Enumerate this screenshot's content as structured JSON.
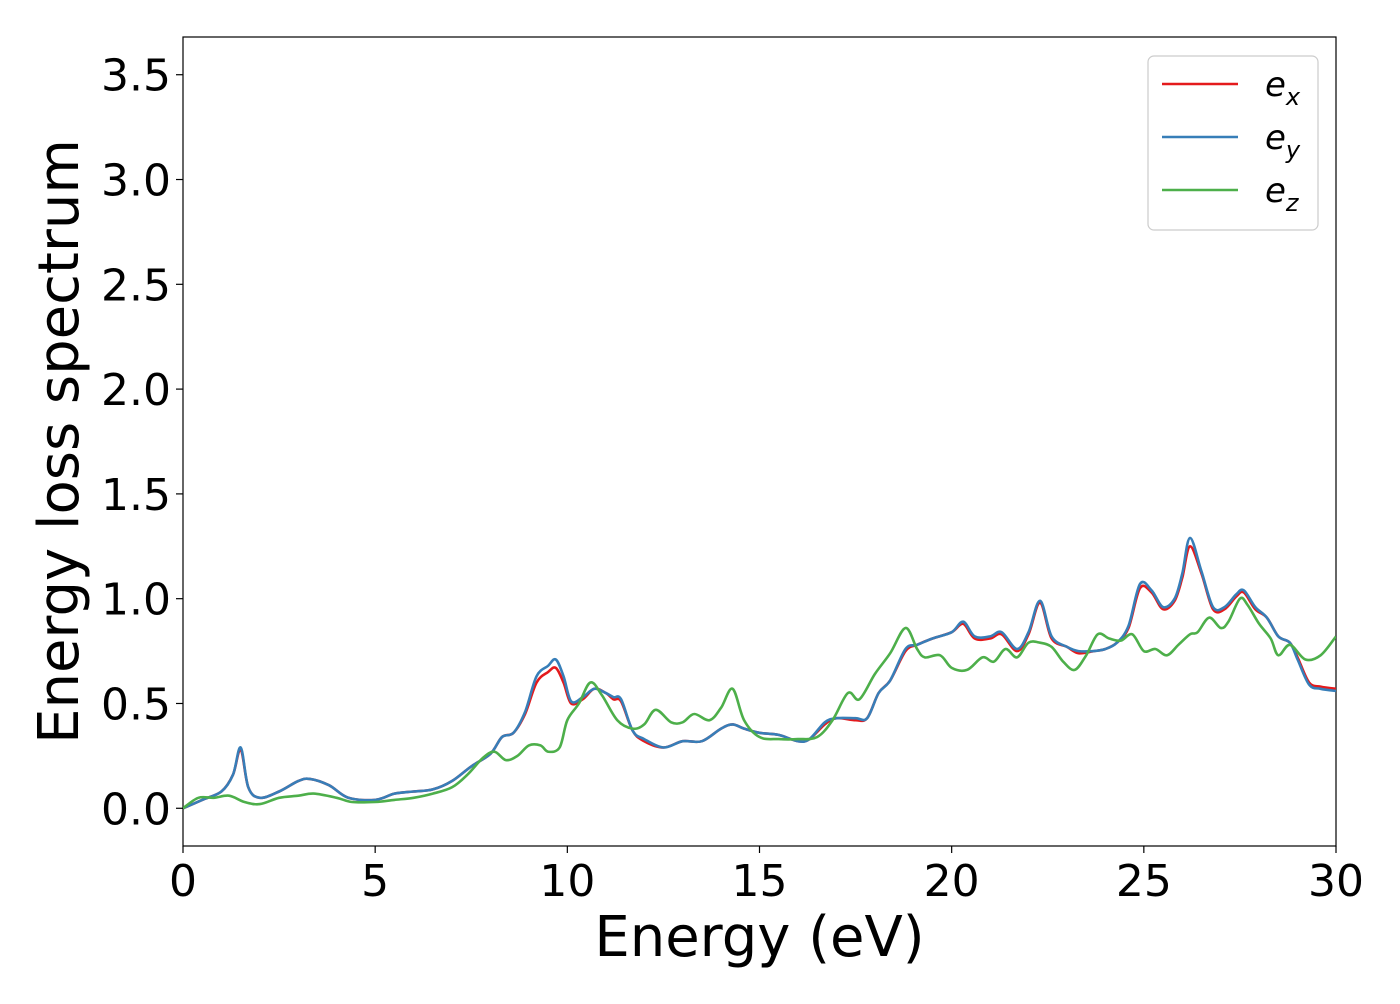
{
  "chart_data": {
    "type": "line",
    "title": "",
    "xlabel": "Energy (eV)",
    "ylabel": "Energy loss spectrum",
    "xlim": [
      0,
      30
    ],
    "ylim": [
      -0.18,
      3.68
    ],
    "xticks": [
      0,
      5,
      10,
      15,
      20,
      25,
      30
    ],
    "xtick_labels": [
      "0",
      "5",
      "10",
      "15",
      "20",
      "25",
      "30"
    ],
    "yticks": [
      0.0,
      0.5,
      1.0,
      1.5,
      2.0,
      2.5,
      3.0,
      3.5
    ],
    "ytick_labels": [
      "0.0",
      "0.5",
      "1.0",
      "1.5",
      "2.0",
      "2.5",
      "3.0",
      "3.5"
    ],
    "grid": false,
    "legend_position": "top-right",
    "series": [
      {
        "name": "e_x",
        "legend_base": "e",
        "legend_sub": "x",
        "color": "#e41a1c",
        "x": [
          0,
          0.5,
          1.0,
          1.3,
          1.5,
          1.7,
          2.0,
          2.5,
          3.0,
          3.3,
          3.8,
          4.3,
          5.0,
          5.5,
          6.0,
          6.5,
          7.0,
          7.5,
          8.0,
          8.3,
          8.6,
          8.9,
          9.2,
          9.5,
          9.7,
          9.9,
          10.1,
          10.4,
          10.7,
          11.0,
          11.2,
          11.4,
          11.7,
          12.0,
          12.5,
          13.0,
          13.5,
          14.0,
          14.3,
          14.6,
          15.0,
          15.5,
          16.0,
          16.3,
          16.7,
          17.0,
          17.5,
          17.8,
          18.1,
          18.4,
          18.8,
          19.1,
          19.5,
          20.0,
          20.3,
          20.6,
          21.0,
          21.3,
          21.7,
          22.0,
          22.3,
          22.6,
          23.0,
          23.3,
          23.7,
          24.0,
          24.3,
          24.6,
          24.9,
          25.2,
          25.5,
          25.8,
          26.0,
          26.2,
          26.5,
          26.8,
          27.1,
          27.4,
          27.6,
          27.9,
          28.2,
          28.5,
          28.8,
          29.0,
          29.3,
          29.6,
          30.0
        ],
        "y": [
          0.0,
          0.04,
          0.08,
          0.16,
          0.28,
          0.1,
          0.05,
          0.08,
          0.13,
          0.14,
          0.11,
          0.05,
          0.04,
          0.07,
          0.08,
          0.09,
          0.13,
          0.2,
          0.26,
          0.34,
          0.36,
          0.45,
          0.6,
          0.65,
          0.67,
          0.6,
          0.5,
          0.52,
          0.57,
          0.55,
          0.52,
          0.51,
          0.37,
          0.32,
          0.29,
          0.32,
          0.32,
          0.38,
          0.4,
          0.38,
          0.36,
          0.35,
          0.32,
          0.33,
          0.4,
          0.43,
          0.42,
          0.43,
          0.55,
          0.61,
          0.75,
          0.78,
          0.81,
          0.84,
          0.88,
          0.81,
          0.81,
          0.83,
          0.75,
          0.83,
          0.98,
          0.81,
          0.77,
          0.74,
          0.75,
          0.76,
          0.79,
          0.86,
          1.05,
          1.03,
          0.95,
          0.99,
          1.1,
          1.25,
          1.12,
          0.95,
          0.95,
          1.01,
          1.03,
          0.95,
          0.91,
          0.82,
          0.79,
          0.72,
          0.6,
          0.58,
          0.57
        ]
      },
      {
        "name": "e_y",
        "legend_base": "e",
        "legend_sub": "y",
        "color": "#377eb8",
        "x": [
          0,
          0.5,
          1.0,
          1.3,
          1.5,
          1.7,
          2.0,
          2.5,
          3.0,
          3.3,
          3.8,
          4.3,
          5.0,
          5.5,
          6.0,
          6.5,
          7.0,
          7.5,
          8.0,
          8.3,
          8.6,
          8.9,
          9.2,
          9.5,
          9.7,
          9.9,
          10.1,
          10.4,
          10.7,
          11.0,
          11.2,
          11.4,
          11.7,
          12.0,
          12.5,
          13.0,
          13.5,
          14.0,
          14.3,
          14.6,
          15.0,
          15.5,
          16.0,
          16.3,
          16.7,
          17.0,
          17.5,
          17.8,
          18.1,
          18.4,
          18.8,
          19.1,
          19.5,
          20.0,
          20.3,
          20.6,
          21.0,
          21.3,
          21.7,
          22.0,
          22.3,
          22.6,
          23.0,
          23.3,
          23.7,
          24.0,
          24.3,
          24.6,
          24.9,
          25.2,
          25.5,
          25.8,
          26.0,
          26.2,
          26.5,
          26.8,
          27.1,
          27.4,
          27.6,
          27.9,
          28.2,
          28.5,
          28.8,
          29.0,
          29.3,
          29.6,
          30.0
        ],
        "y": [
          0.0,
          0.04,
          0.08,
          0.16,
          0.29,
          0.1,
          0.05,
          0.08,
          0.13,
          0.14,
          0.11,
          0.05,
          0.04,
          0.07,
          0.08,
          0.09,
          0.13,
          0.2,
          0.26,
          0.34,
          0.36,
          0.46,
          0.63,
          0.68,
          0.71,
          0.63,
          0.51,
          0.53,
          0.57,
          0.55,
          0.53,
          0.52,
          0.37,
          0.33,
          0.29,
          0.32,
          0.32,
          0.38,
          0.4,
          0.38,
          0.36,
          0.35,
          0.32,
          0.33,
          0.41,
          0.43,
          0.43,
          0.43,
          0.55,
          0.61,
          0.76,
          0.78,
          0.81,
          0.84,
          0.89,
          0.82,
          0.82,
          0.84,
          0.76,
          0.84,
          0.99,
          0.82,
          0.77,
          0.75,
          0.75,
          0.76,
          0.79,
          0.87,
          1.07,
          1.04,
          0.96,
          1.0,
          1.12,
          1.29,
          1.13,
          0.96,
          0.96,
          1.02,
          1.04,
          0.96,
          0.91,
          0.82,
          0.79,
          0.71,
          0.59,
          0.57,
          0.56
        ]
      },
      {
        "name": "e_z",
        "legend_base": "e",
        "legend_sub": "z",
        "color": "#4daf4a",
        "x": [
          0,
          0.4,
          0.8,
          1.2,
          1.6,
          2.0,
          2.5,
          3.0,
          3.4,
          4.0,
          4.4,
          5.0,
          5.5,
          6.0,
          6.5,
          7.0,
          7.4,
          7.8,
          8.1,
          8.4,
          8.7,
          9.0,
          9.3,
          9.5,
          9.8,
          10.0,
          10.3,
          10.6,
          10.9,
          11.3,
          11.7,
          12.0,
          12.3,
          12.7,
          13.0,
          13.3,
          13.7,
          14.0,
          14.3,
          14.6,
          15.0,
          15.5,
          16.0,
          16.5,
          16.9,
          17.3,
          17.6,
          18.0,
          18.4,
          18.8,
          19.1,
          19.3,
          19.7,
          20.0,
          20.4,
          20.8,
          21.1,
          21.4,
          21.7,
          22.0,
          22.3,
          22.6,
          22.9,
          23.2,
          23.5,
          23.8,
          24.1,
          24.4,
          24.7,
          25.0,
          25.3,
          25.6,
          25.9,
          26.2,
          26.4,
          26.7,
          27.0,
          27.2,
          27.5,
          27.7,
          28.0,
          28.3,
          28.5,
          28.8,
          29.2,
          29.6,
          30.0
        ],
        "y": [
          0.0,
          0.05,
          0.05,
          0.06,
          0.03,
          0.02,
          0.05,
          0.06,
          0.07,
          0.05,
          0.03,
          0.03,
          0.04,
          0.05,
          0.07,
          0.1,
          0.16,
          0.24,
          0.27,
          0.23,
          0.25,
          0.3,
          0.3,
          0.27,
          0.29,
          0.42,
          0.5,
          0.6,
          0.54,
          0.42,
          0.38,
          0.4,
          0.47,
          0.41,
          0.41,
          0.45,
          0.42,
          0.48,
          0.57,
          0.42,
          0.34,
          0.33,
          0.33,
          0.34,
          0.42,
          0.55,
          0.52,
          0.64,
          0.74,
          0.86,
          0.76,
          0.72,
          0.73,
          0.67,
          0.66,
          0.72,
          0.7,
          0.76,
          0.72,
          0.79,
          0.79,
          0.77,
          0.7,
          0.66,
          0.73,
          0.83,
          0.81,
          0.8,
          0.83,
          0.75,
          0.76,
          0.73,
          0.78,
          0.83,
          0.84,
          0.91,
          0.86,
          0.89,
          1.0,
          0.97,
          0.88,
          0.81,
          0.73,
          0.78,
          0.71,
          0.73,
          0.82
        ]
      }
    ]
  }
}
